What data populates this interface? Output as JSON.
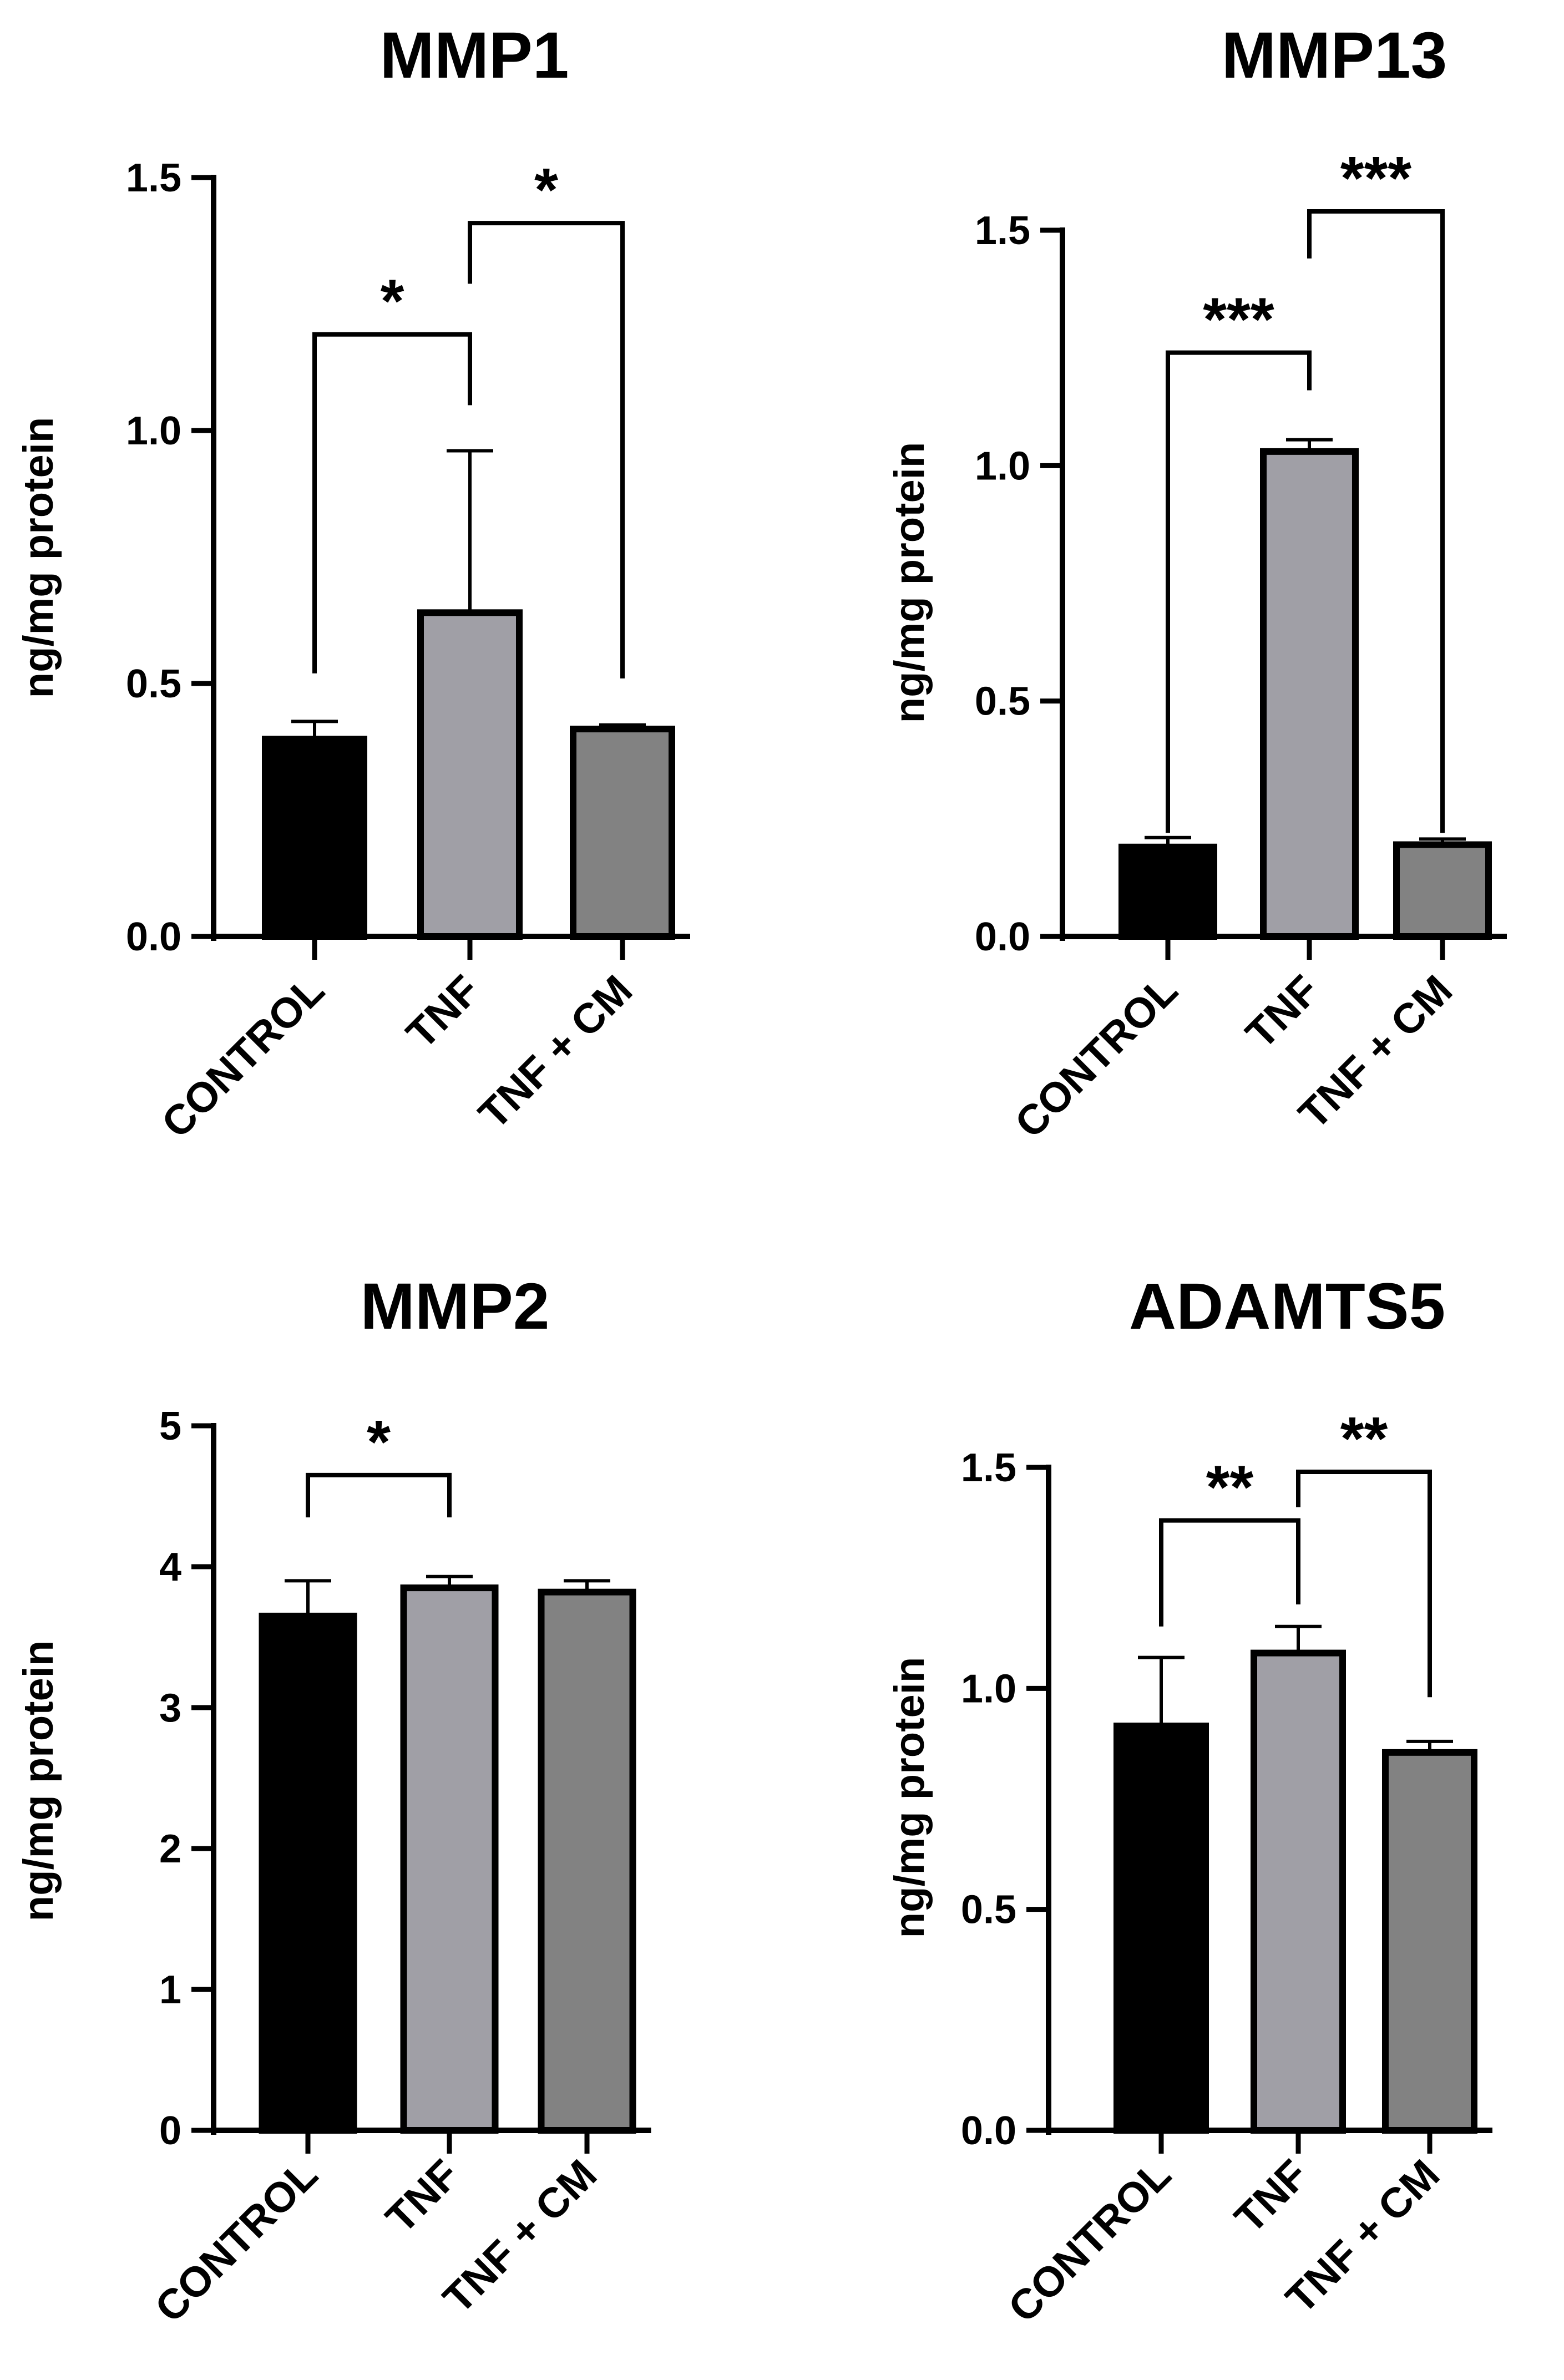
{
  "colors": {
    "control": "#000000",
    "tnf": "#a09fa6",
    "tnf_cm": "#828282",
    "axis": "#000000"
  },
  "chart_data": [
    {
      "type": "bar",
      "title": "MMP1",
      "ylabel": "ng/mg protein",
      "categories": [
        "CONTROL",
        "TNF",
        "TNF + CM"
      ],
      "values": [
        0.39,
        0.64,
        0.41
      ],
      "errors": [
        0.035,
        0.32,
        0.008
      ],
      "ylim": [
        0,
        1.5
      ],
      "yticks": [
        {
          "value": 0,
          "label": "0.0"
        },
        {
          "value": 0.5,
          "label": "0.5"
        },
        {
          "value": 1.0,
          "label": "1.0"
        },
        {
          "value": 1.5,
          "label": "1.5"
        }
      ],
      "significance": [
        {
          "from": 0,
          "to": 1,
          "label": "*",
          "y": 1.19,
          "left_end": 0.52,
          "right_end": 1.05
        },
        {
          "from": 1,
          "to": 2,
          "label": "*",
          "y": 1.41,
          "left_end": 1.29,
          "right_end": 0.51
        }
      ]
    },
    {
      "type": "bar",
      "title": "MMP13",
      "ylabel": "ng/mg protein",
      "categories": [
        "CONTROL",
        "TNF",
        "TNF + CM"
      ],
      "values": [
        0.19,
        1.03,
        0.195
      ],
      "errors": [
        0.02,
        0.025,
        0.012
      ],
      "ylim": [
        0,
        1.5
      ],
      "yticks": [
        {
          "value": 0,
          "label": "0.0"
        },
        {
          "value": 0.5,
          "label": "0.5"
        },
        {
          "value": 1.0,
          "label": "1.0"
        },
        {
          "value": 1.5,
          "label": "1.5"
        }
      ],
      "significance": [
        {
          "from": 0,
          "to": 1,
          "label": "***",
          "y": 1.24,
          "left_end": 0.22,
          "right_end": 1.16
        },
        {
          "from": 1,
          "to": 2,
          "label": "***",
          "y": 1.54,
          "left_end": 1.44,
          "right_end": 0.22
        }
      ]
    },
    {
      "type": "bar",
      "title": "MMP2",
      "ylabel": "ng/mg protein",
      "categories": [
        "CONTROL",
        "TNF",
        "TNF + CM"
      ],
      "values": [
        3.65,
        3.85,
        3.82
      ],
      "errors": [
        0.25,
        0.08,
        0.08
      ],
      "ylim": [
        0,
        5
      ],
      "yticks": [
        {
          "value": 0,
          "label": "0"
        },
        {
          "value": 1,
          "label": "1"
        },
        {
          "value": 2,
          "label": "2"
        },
        {
          "value": 3,
          "label": "3"
        },
        {
          "value": 4,
          "label": "4"
        },
        {
          "value": 5,
          "label": "5"
        }
      ],
      "significance": [
        {
          "from": 0,
          "to": 1,
          "label": "*",
          "y": 4.65,
          "left_end": 4.35,
          "right_end": 4.35
        }
      ]
    },
    {
      "type": "bar",
      "title": "ADAMTS5",
      "ylabel": "ng/mg protein",
      "categories": [
        "CONTROL",
        "TNF",
        "TNF + CM"
      ],
      "values": [
        0.915,
        1.08,
        0.855
      ],
      "errors": [
        0.155,
        0.06,
        0.025
      ],
      "ylim": [
        0,
        1.5
      ],
      "yticks": [
        {
          "value": 0,
          "label": "0.0"
        },
        {
          "value": 0.5,
          "label": "0.5"
        },
        {
          "value": 1.0,
          "label": "1.0"
        },
        {
          "value": 1.5,
          "label": "1.5"
        }
      ],
      "significance": [
        {
          "from": 0,
          "to": 1,
          "label": "**",
          "y": 1.38,
          "left_end": 1.14,
          "right_end": 1.19
        },
        {
          "from": 1,
          "to": 2,
          "label": "**",
          "y": 1.49,
          "left_end": 1.41,
          "right_end": 0.98
        }
      ]
    }
  ]
}
